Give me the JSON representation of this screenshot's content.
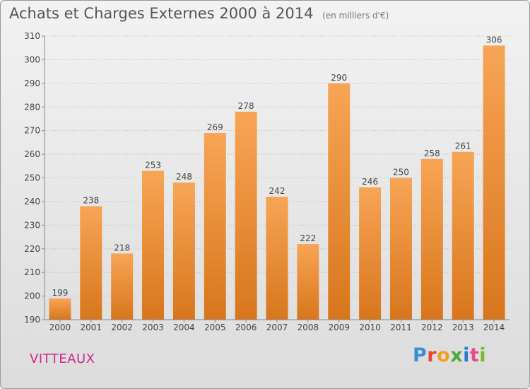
{
  "header": {
    "title": "Achats et Charges Externes 2000 à 2014",
    "unit": "(en milliers d'€)"
  },
  "footer": {
    "city": "VITTEAUX",
    "logo_letters": [
      "P",
      "r",
      "o",
      "x",
      "i",
      "t",
      "i"
    ]
  },
  "colors": {
    "bar_top": "#f7a555",
    "bar_bottom": "#d8761c",
    "grid": "#bfbfbf",
    "axis_text": "#444444",
    "city": "#cc2a8a"
  },
  "chart_data": {
    "type": "bar",
    "title": "Achats et Charges Externes 2000 à 2014",
    "subtitle": "(en milliers d'€)",
    "categories": [
      "2000",
      "2001",
      "2002",
      "2003",
      "2004",
      "2005",
      "2006",
      "2007",
      "2008",
      "2009",
      "2010",
      "2011",
      "2012",
      "2013",
      "2014"
    ],
    "values": [
      199,
      238,
      218,
      253,
      248,
      269,
      278,
      242,
      222,
      290,
      246,
      250,
      258,
      261,
      306
    ],
    "ylim": [
      190,
      310
    ],
    "yticks": [
      190,
      200,
      210,
      220,
      230,
      240,
      250,
      260,
      270,
      280,
      290,
      300,
      310
    ],
    "xlabel": "",
    "ylabel": "",
    "grid": true,
    "data_labels": true
  }
}
